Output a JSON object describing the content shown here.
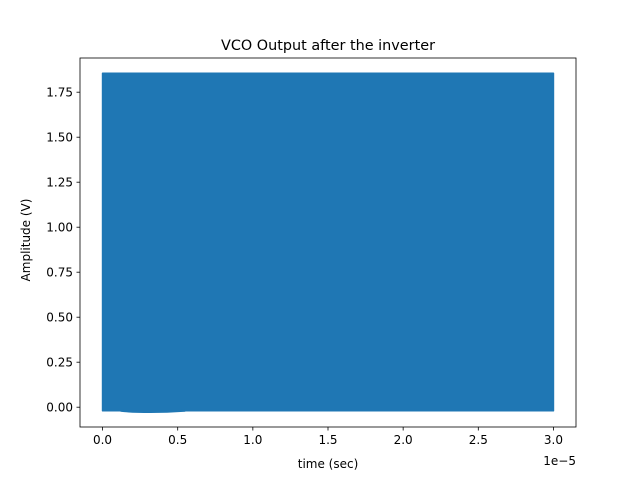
{
  "chart_data": {
    "type": "line",
    "title": "VCO Output after the inverter",
    "xlabel": "time (sec)",
    "ylabel": "Amplitude (V)",
    "x_offset_label": "1e−5",
    "xlim": [
      -1.5e-06,
      3.15e-05
    ],
    "ylim": [
      -0.11,
      1.94
    ],
    "x_ticks": [
      0,
      5e-06,
      1e-05,
      1.5e-05,
      2e-05,
      2.5e-05,
      3e-05
    ],
    "x_tick_labels": [
      "0.0",
      "0.5",
      "1.0",
      "1.5",
      "2.0",
      "2.5",
      "3.0"
    ],
    "y_ticks": [
      0,
      0.25,
      0.5,
      0.75,
      1.0,
      1.25,
      1.5,
      1.75
    ],
    "y_tick_labels": [
      "0.00",
      "0.25",
      "0.50",
      "0.75",
      "1.00",
      "1.25",
      "1.50",
      "1.75"
    ],
    "grid": false,
    "legend": "none",
    "series": [
      {
        "color": "#1f77b4",
        "x_start": 0,
        "x_end": 3e-05,
        "y_min": -0.02,
        "y_max": 1.855
      }
    ]
  }
}
